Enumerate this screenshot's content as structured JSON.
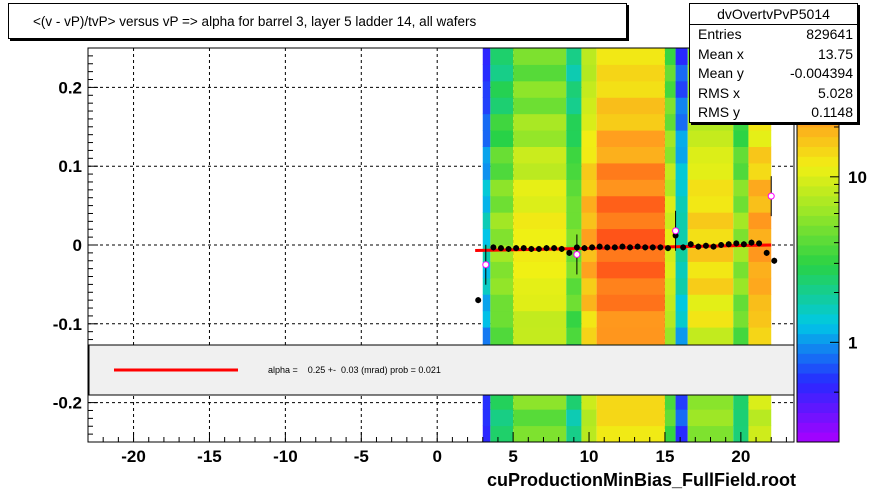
{
  "title": "<(v - vP)/tvP>  versus   vP => alpha for barrel 3, layer 5 ladder 14, all wafers",
  "stats": {
    "name": "dvOvertvPvP5014",
    "rows": [
      {
        "label": "Entries",
        "value": "829641"
      },
      {
        "label": "Mean x",
        "value": "13.75"
      },
      {
        "label": "Mean y",
        "value": "-0.004394"
      },
      {
        "label": "RMS x",
        "value": "5.028"
      },
      {
        "label": "RMS y",
        "value": "0.1148"
      }
    ]
  },
  "fit_legend": "alpha =    0.25 +-  0.03 (mrad) prob = 0.021",
  "footer": "cuProductionMinBias_FullField.root",
  "colors": {
    "fit_line": "#ff0000",
    "profile_points": "#000000",
    "legend_bg": "#f0f0f0"
  },
  "chart_data": {
    "type": "heatmap",
    "xlim": [
      -23,
      23.5
    ],
    "ylim": [
      -0.25,
      0.25
    ],
    "x_ticks": [
      -20,
      -15,
      -10,
      -5,
      0,
      5,
      10,
      15,
      20
    ],
    "x_tick_labels": [
      "-20",
      "-15",
      "-10",
      "-5",
      "0",
      "5",
      "10",
      "15",
      "20"
    ],
    "y_ticks": [
      0.2,
      0.1,
      0,
      -0.1,
      -0.2
    ],
    "y_tick_labels": [
      "0.2",
      "0.1",
      "0",
      "-0.1",
      "-0.2"
    ],
    "grid": true,
    "z_scale": "log",
    "z_ticks": [
      1,
      10
    ],
    "z_tick_labels": [
      "1",
      "10"
    ],
    "columns": [
      {
        "x0": 3.0,
        "x1": 3.5,
        "z": 1.5
      },
      {
        "x0": 3.5,
        "x1": 5.0,
        "z": 6
      },
      {
        "x0": 5.0,
        "x1": 8.5,
        "z": 12
      },
      {
        "x0": 8.5,
        "x1": 9.5,
        "z": 5
      },
      {
        "x0": 9.5,
        "x1": 10.5,
        "z": 20
      },
      {
        "x0": 10.5,
        "x1": 15.0,
        "z": 35
      },
      {
        "x0": 15.0,
        "x1": 15.7,
        "z": 10
      },
      {
        "x0": 15.7,
        "x1": 16.5,
        "z": 1.8
      },
      {
        "x0": 16.5,
        "x1": 19.5,
        "z": 15
      },
      {
        "x0": 19.5,
        "x1": 20.5,
        "z": 6
      },
      {
        "x0": 20.5,
        "x1": 22.0,
        "z": 22
      }
    ],
    "profile": {
      "x": [
        2.7,
        3.2,
        3.7,
        4.2,
        4.7,
        5.2,
        5.7,
        6.2,
        6.7,
        7.2,
        7.7,
        8.2,
        8.7,
        9.2,
        9.7,
        10.2,
        10.7,
        11.2,
        11.7,
        12.2,
        12.7,
        13.2,
        13.7,
        14.2,
        14.7,
        15.2,
        15.7,
        16.2,
        16.7,
        17.2,
        17.7,
        18.2,
        18.7,
        19.2,
        19.7,
        20.2,
        20.7,
        21.2,
        21.7,
        22.2
      ],
      "y": [
        -0.07,
        -0.025,
        -0.003,
        -0.004,
        -0.005,
        -0.004,
        -0.004,
        -0.005,
        -0.005,
        -0.004,
        -0.004,
        -0.005,
        -0.01,
        -0.003,
        -0.004,
        -0.003,
        -0.002,
        -0.003,
        -0.003,
        -0.002,
        -0.003,
        -0.002,
        -0.003,
        -0.003,
        -0.003,
        -0.004,
        0.012,
        -0.003,
        0.001,
        -0.002,
        -0.001,
        -0.002,
        0.0,
        0.001,
        0.002,
        0.001,
        0.003,
        0.002,
        -0.01,
        -0.02
      ]
    },
    "open_markers": {
      "x": [
        3.2,
        9.2,
        15.7,
        22.0
      ],
      "y": [
        -0.025,
        -0.012,
        0.018,
        0.062
      ]
    },
    "fit": {
      "x0": 2.5,
      "x1": 22.0,
      "y0": -0.007,
      "y1": 0.0
    }
  }
}
